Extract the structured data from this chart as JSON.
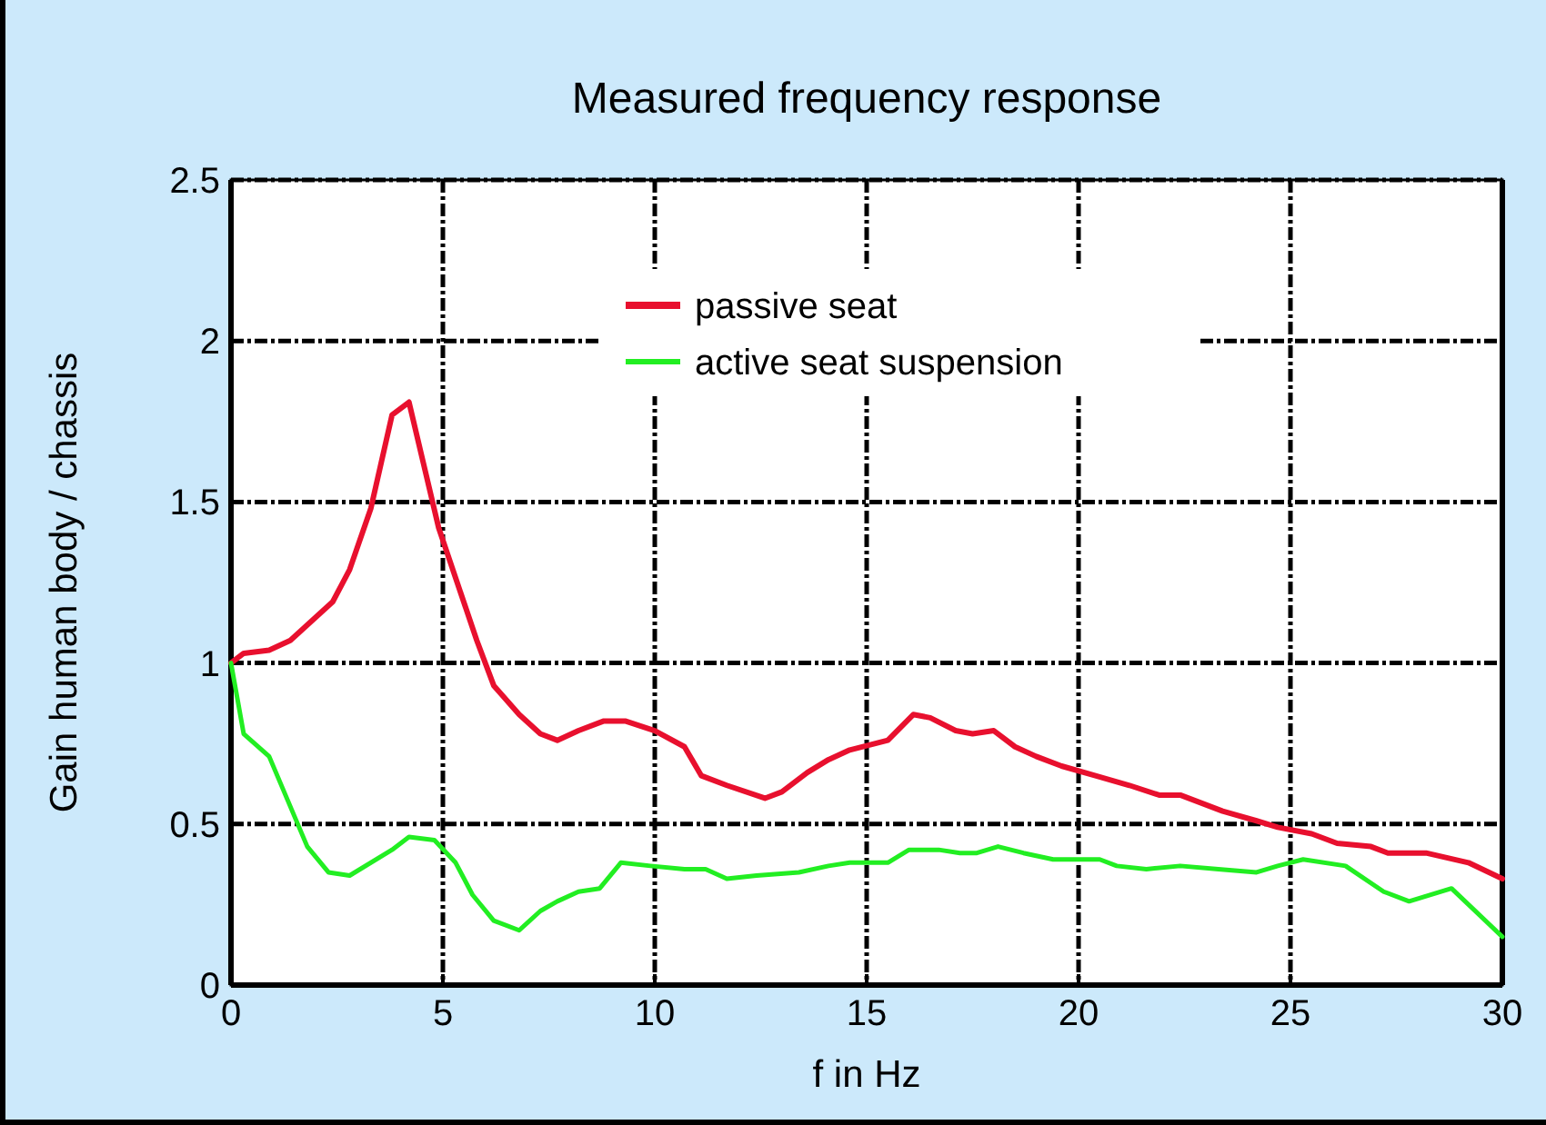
{
  "chart_data": {
    "type": "line",
    "title": "Measured frequency response",
    "xlabel": "f in Hz",
    "ylabel": "Gain human body / chassis",
    "xlim": [
      0,
      30
    ],
    "xticks": [
      0,
      5,
      10,
      15,
      20,
      25,
      30
    ],
    "ylim": [
      0,
      2.5
    ],
    "yticks": [
      0,
      0.5,
      1,
      1.5,
      2,
      2.5
    ],
    "grid": true,
    "legend": "top",
    "series": [
      {
        "name": "passive seat",
        "color": "#e8102e",
        "x": [
          0,
          0.3,
          0.9,
          1.4,
          2.4,
          2.8,
          3.3,
          3.8,
          4.2,
          4.9,
          5.8,
          6.2,
          6.8,
          7.3,
          7.7,
          8.2,
          8.8,
          9.3,
          10,
          10.7,
          11.1,
          11.7,
          12.6,
          13,
          13.6,
          14.1,
          14.6,
          15.5,
          16.1,
          16.5,
          17.1,
          17.5,
          18,
          18.5,
          19,
          19.6,
          20.4,
          21.2,
          21.9,
          22.4,
          23.4,
          24.2,
          24.7,
          25.5,
          26.1,
          26.9,
          27.3,
          28.2,
          29.2,
          30
        ],
        "values": [
          1,
          1.03,
          1.04,
          1.07,
          1.19,
          1.29,
          1.48,
          1.77,
          1.81,
          1.42,
          1.07,
          0.93,
          0.84,
          0.78,
          0.76,
          0.79,
          0.82,
          0.82,
          0.79,
          0.74,
          0.65,
          0.62,
          0.58,
          0.6,
          0.66,
          0.7,
          0.73,
          0.76,
          0.84,
          0.83,
          0.79,
          0.78,
          0.79,
          0.74,
          0.71,
          0.68,
          0.65,
          0.62,
          0.59,
          0.59,
          0.54,
          0.51,
          0.49,
          0.47,
          0.44,
          0.43,
          0.41,
          0.41,
          0.38,
          0.33
        ]
      },
      {
        "name": "active seat suspension",
        "color": "#22ee22",
        "x": [
          0,
          0.3,
          0.9,
          1.8,
          2.3,
          2.8,
          3.8,
          4.2,
          4.8,
          5.3,
          5.7,
          6.2,
          6.8,
          7.3,
          7.7,
          8.2,
          8.7,
          9.2,
          9.9,
          10.7,
          11.2,
          11.7,
          12.4,
          13.4,
          14.1,
          14.6,
          15.5,
          16,
          16.7,
          17.2,
          17.6,
          18.1,
          18.7,
          19.4,
          20.5,
          20.9,
          21.6,
          22.4,
          23.3,
          24.2,
          24.7,
          25.3,
          26.3,
          27.2,
          27.8,
          28.8,
          30
        ],
        "values": [
          1,
          0.78,
          0.71,
          0.43,
          0.35,
          0.34,
          0.42,
          0.46,
          0.45,
          0.38,
          0.28,
          0.2,
          0.17,
          0.23,
          0.26,
          0.29,
          0.3,
          0.38,
          0.37,
          0.36,
          0.36,
          0.33,
          0.34,
          0.35,
          0.37,
          0.38,
          0.38,
          0.42,
          0.42,
          0.41,
          0.41,
          0.43,
          0.41,
          0.39,
          0.39,
          0.37,
          0.36,
          0.37,
          0.36,
          0.35,
          0.37,
          0.39,
          0.37,
          0.29,
          0.26,
          0.3,
          0.15
        ]
      }
    ]
  }
}
